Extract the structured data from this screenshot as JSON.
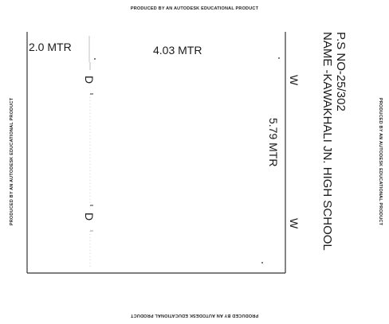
{
  "watermark": "PRODUCED BY AN AUTODESK EDUCATIONAL PRODUCT",
  "title": {
    "ps_no": "P.S NO-25/302",
    "name": "NAME -KAWAKHALI JN. HIGH SCHOOL"
  },
  "dimensions": {
    "verandah_width": "2.0 MTR",
    "room_width": "4.03 MTR",
    "room_length": "5.79 MTR"
  },
  "openings": {
    "door_top": "D",
    "door_bottom": "D",
    "window_top": "W",
    "window_bottom": "W"
  }
}
